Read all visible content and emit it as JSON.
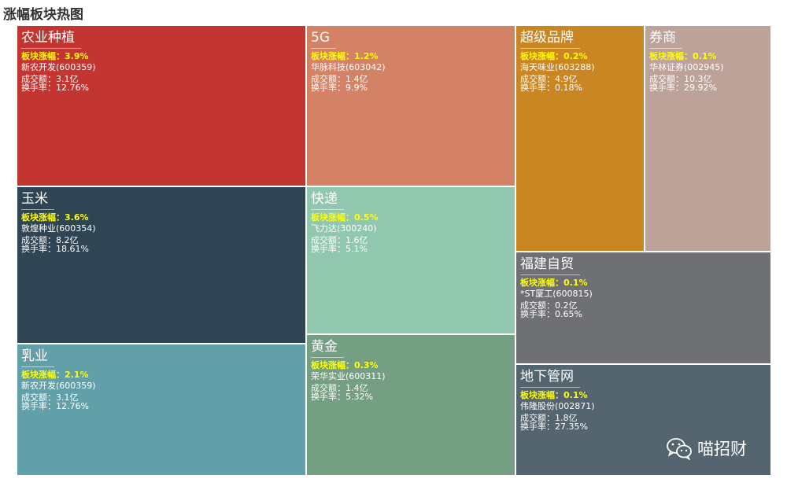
{
  "page_title": "涨幅板块热图",
  "watermark": {
    "icon": "wechat-icon",
    "text": "喵招财"
  },
  "labels": {
    "change": "板块涨幅：",
    "amount": "成交额：",
    "turnover": "换手率："
  },
  "chart_data": {
    "type": "treemap",
    "title": "涨幅板块热图",
    "nodes": [
      {
        "name": "农业种植",
        "change_pct": "3.9%",
        "stock": "新农开发(600359)",
        "amount": "3.1亿",
        "turnover": "12.76%",
        "color": "#c23531"
      },
      {
        "name": "玉米",
        "change_pct": "3.6%",
        "stock": "敦煌种业(600354)",
        "amount": "8.2亿",
        "turnover": "18.61%",
        "color": "#2f4554"
      },
      {
        "name": "乳业",
        "change_pct": "2.1%",
        "stock": "新农开发(600359)",
        "amount": "3.1亿",
        "turnover": "12.76%",
        "color": "#61a0a8"
      },
      {
        "name": "5G",
        "change_pct": "1.2%",
        "stock": "华脉科技(603042)",
        "amount": "1.4亿",
        "turnover": "9.9%",
        "color": "#d48265"
      },
      {
        "name": "快递",
        "change_pct": "0.5%",
        "stock": "飞力达(300240)",
        "amount": "1.6亿",
        "turnover": "5.1%",
        "color": "#91c7ae"
      },
      {
        "name": "黄金",
        "change_pct": "0.3%",
        "stock": "荣华实业(600311)",
        "amount": "1.4亿",
        "turnover": "5.32%",
        "color": "#749f83"
      },
      {
        "name": "超级品牌",
        "change_pct": "0.2%",
        "stock": "海天味业(603288)",
        "amount": "4.9亿",
        "turnover": "0.18%",
        "color": "#ca8622"
      },
      {
        "name": "券商",
        "change_pct": "0.1%",
        "stock": "华林证券(002945)",
        "amount": "10.3亿",
        "turnover": "29.92%",
        "color": "#bda29a"
      },
      {
        "name": "福建自贸",
        "change_pct": "0.1%",
        "stock": "*ST厦工(600815)",
        "amount": "0.2亿",
        "turnover": "0.65%",
        "color": "#6e7074"
      },
      {
        "name": "地下管网",
        "change_pct": "0.1%",
        "stock": "伟隆股份(002871)",
        "amount": "1.8亿",
        "turnover": "27.35%",
        "color": "#546570"
      }
    ]
  }
}
